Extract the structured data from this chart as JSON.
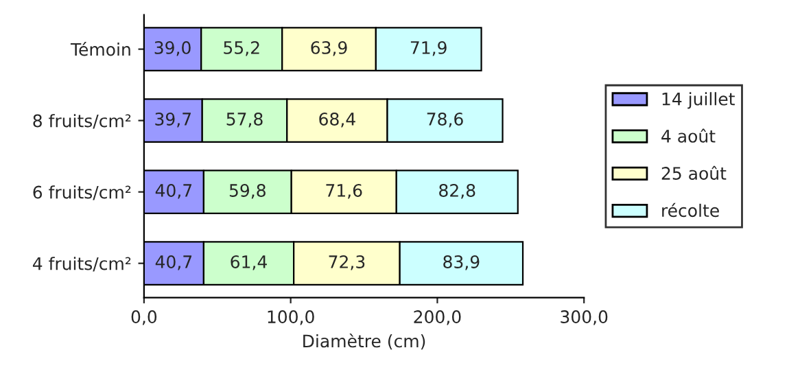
{
  "chart_data": {
    "type": "bar",
    "orientation": "horizontal",
    "stacked": true,
    "xlabel": "Diamètre (cm)",
    "categories": [
      "Témoin",
      "8 fruits/cm²",
      "6 fruits/cm²",
      "4 fruits/cm²"
    ],
    "series": [
      {
        "name": "14 juillet",
        "color": "#9999ff",
        "values": [
          39.0,
          39.7,
          40.7,
          40.7
        ],
        "value_labels": [
          "39,0",
          "39,7",
          "40,7",
          "40,7"
        ]
      },
      {
        "name": "4 août",
        "color": "#ccffcc",
        "values": [
          55.2,
          57.8,
          59.8,
          61.4
        ],
        "value_labels": [
          "55,2",
          "57,8",
          "59,8",
          "61,4"
        ]
      },
      {
        "name": "25 août",
        "color": "#ffffcc",
        "values": [
          63.9,
          68.4,
          71.6,
          72.3
        ],
        "value_labels": [
          "63,9",
          "68,4",
          "71,6",
          "72,3"
        ]
      },
      {
        "name": "récolte",
        "color": "#ccffff",
        "values": [
          71.9,
          78.6,
          82.8,
          83.9
        ],
        "value_labels": [
          "71,9",
          "78,6",
          "82,8",
          "83,9"
        ]
      }
    ],
    "xlim": [
      0,
      300
    ],
    "xticks": [
      {
        "value": 0,
        "label": "0,0"
      },
      {
        "value": 100,
        "label": "100,0"
      },
      {
        "value": 200,
        "label": "200,0"
      },
      {
        "value": 300,
        "label": "300,0"
      }
    ],
    "grid": false,
    "legend": "right"
  }
}
